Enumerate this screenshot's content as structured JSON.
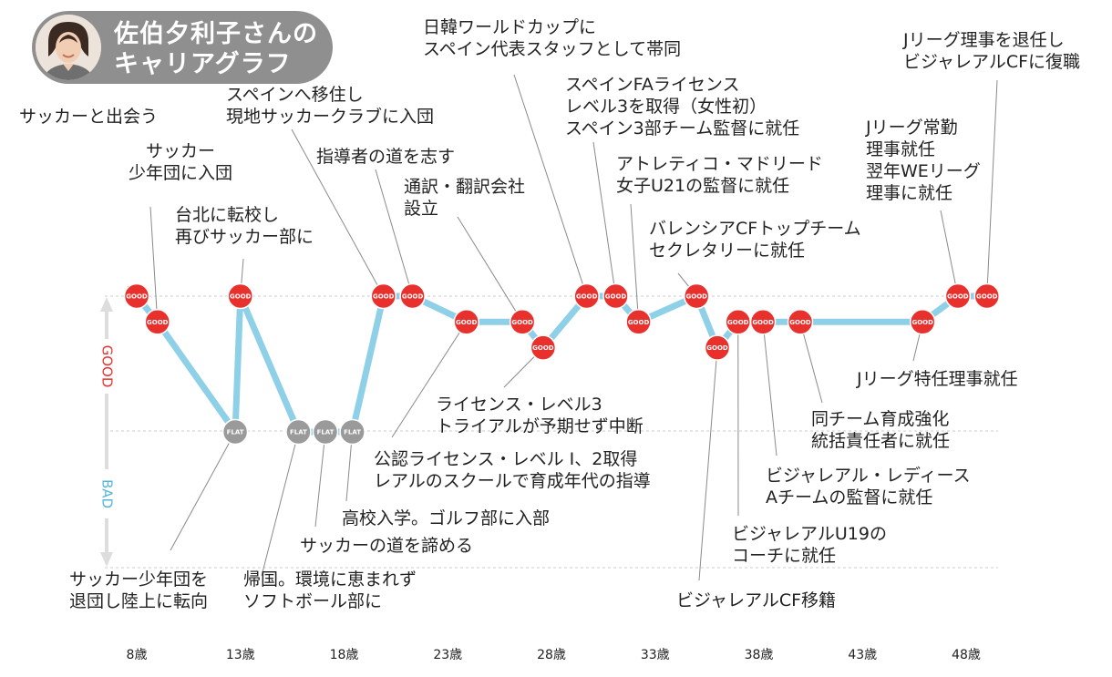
{
  "header": {
    "title_line1": "佐伯夕利子さんの",
    "title_line2": "キャリアグラフ"
  },
  "colors": {
    "line": "#8ed0e8",
    "good_marker": "#e8312d",
    "flat_marker": "#9a9a9a",
    "good_axis": "#e8312d",
    "bad_axis": "#54b5dc",
    "arrow": "#dddddd",
    "grid": "#cccccc"
  },
  "chart_data": {
    "type": "line",
    "title": "佐伯夕利子さんのキャリアグラフ",
    "ylabel_top": "GOOD",
    "ylabel_bottom": "BAD",
    "y_levels": [
      "GOOD",
      "FLAT",
      "BAD"
    ],
    "x_ticks": [
      "8歳",
      "13歳",
      "18歳",
      "23歳",
      "28歳",
      "33歳",
      "38歳",
      "43歳",
      "48歳"
    ],
    "x_tick_values": [
      8,
      13,
      18,
      23,
      28,
      33,
      38,
      43,
      48
    ],
    "xlim": [
      6.9,
      49.5
    ],
    "ylim": [
      0,
      1
    ],
    "grid": true,
    "points": [
      {
        "age": 8.0,
        "level": 1.0,
        "marker": "GOOD"
      },
      {
        "age": 9.0,
        "level": 0.905,
        "marker": "GOOD"
      },
      {
        "age": 12.75,
        "level": 0.5,
        "marker": "FLAT"
      },
      {
        "age": 13.0,
        "level": 1.0,
        "marker": "GOOD"
      },
      {
        "age": 15.8,
        "level": 0.5,
        "marker": "FLAT"
      },
      {
        "age": 17.1,
        "level": 0.5,
        "marker": "FLAT"
      },
      {
        "age": 18.4,
        "level": 0.5,
        "marker": "FLAT"
      },
      {
        "age": 19.9,
        "level": 1.0,
        "marker": "GOOD"
      },
      {
        "age": 21.3,
        "level": 1.0,
        "marker": "GOOD"
      },
      {
        "age": 23.9,
        "level": 0.905,
        "marker": "GOOD"
      },
      {
        "age": 26.6,
        "level": 0.905,
        "marker": "GOOD"
      },
      {
        "age": 27.6,
        "level": 0.81,
        "marker": "GOOD"
      },
      {
        "age": 29.7,
        "level": 1.0,
        "marker": "GOOD"
      },
      {
        "age": 31.1,
        "level": 1.0,
        "marker": "GOOD"
      },
      {
        "age": 32.2,
        "level": 0.905,
        "marker": "GOOD"
      },
      {
        "age": 35.0,
        "level": 1.0,
        "marker": "GOOD"
      },
      {
        "age": 36.0,
        "level": 0.81,
        "marker": "GOOD"
      },
      {
        "age": 37.0,
        "level": 0.905,
        "marker": "GOOD"
      },
      {
        "age": 38.2,
        "level": 0.905,
        "marker": "GOOD"
      },
      {
        "age": 40.0,
        "level": 0.905,
        "marker": "GOOD"
      },
      {
        "age": 45.9,
        "level": 0.905,
        "marker": "GOOD"
      },
      {
        "age": 47.6,
        "level": 1.0,
        "marker": "GOOD"
      },
      {
        "age": 49.0,
        "level": 1.0,
        "marker": "GOOD"
      }
    ],
    "annotations": [
      {
        "point": 0,
        "lines": [
          "サッカーと出会う"
        ]
      },
      {
        "point": 1,
        "lines": [
          "サッカー",
          "少年団に入団"
        ]
      },
      {
        "point": 2,
        "lines": [
          "サッカー少年団を",
          "退団し陸上に転向"
        ]
      },
      {
        "point": 3,
        "lines": [
          "台北に転校し",
          "再びサッカー部に"
        ]
      },
      {
        "point": 4,
        "lines": [
          "帰国。環境に恵まれず",
          "ソフトボール部に"
        ]
      },
      {
        "point": 5,
        "lines": [
          "サッカーの道を諦める"
        ]
      },
      {
        "point": 6,
        "lines": [
          "高校入学。ゴルフ部に入部"
        ]
      },
      {
        "point": 7,
        "lines": [
          "スペインへ移住し",
          "現地サッカークラブに入団"
        ]
      },
      {
        "point": 8,
        "lines": [
          "指導者の道を志す"
        ]
      },
      {
        "point": 9,
        "lines": [
          "公認ライセンス・レベル Ⅰ、2取得",
          "レアルのスクールで育成年代の指導"
        ]
      },
      {
        "point": 10,
        "lines": [
          "通訳・翻訳会社",
          "設立"
        ]
      },
      {
        "point": 11,
        "lines": [
          "ライセンス・レベル3",
          "トライアルが予期せず中断"
        ]
      },
      {
        "point": 12,
        "lines": [
          "日韓ワールドカップに",
          "スペイン代表スタッフとして帯同"
        ]
      },
      {
        "point": 13,
        "lines": [
          "スペインFAライセンス",
          "レベル3を取得（女性初）",
          "スペイン3部チーム監督に就任"
        ]
      },
      {
        "point": 14,
        "lines": [
          "アトレティコ・マドリード",
          "女子U21の監督に就任"
        ]
      },
      {
        "point": 15,
        "lines": [
          "バレンシアCFトップチーム",
          "セクレタリーに就任"
        ]
      },
      {
        "point": 16,
        "lines": [
          "ビジャレアルCF移籍"
        ]
      },
      {
        "point": 17,
        "lines": [
          "ビジャレアルU19の",
          "コーチに就任"
        ]
      },
      {
        "point": 18,
        "lines": [
          "ビジャレアル・レディース",
          "Aチームの監督に就任"
        ]
      },
      {
        "point": 19,
        "lines": [
          "同チーム育成強化",
          "統括責任者に就任"
        ]
      },
      {
        "point": 20,
        "lines": [
          "Jリーグ特任理事就任"
        ]
      },
      {
        "point": 21,
        "lines": [
          "Jリーグ常勤",
          "理事就任",
          "翌年WEリーグ",
          "理事に就任"
        ]
      },
      {
        "point": 22,
        "lines": [
          "Jリーグ理事を退任し",
          "ビジャレアルCFに復職"
        ]
      }
    ]
  }
}
